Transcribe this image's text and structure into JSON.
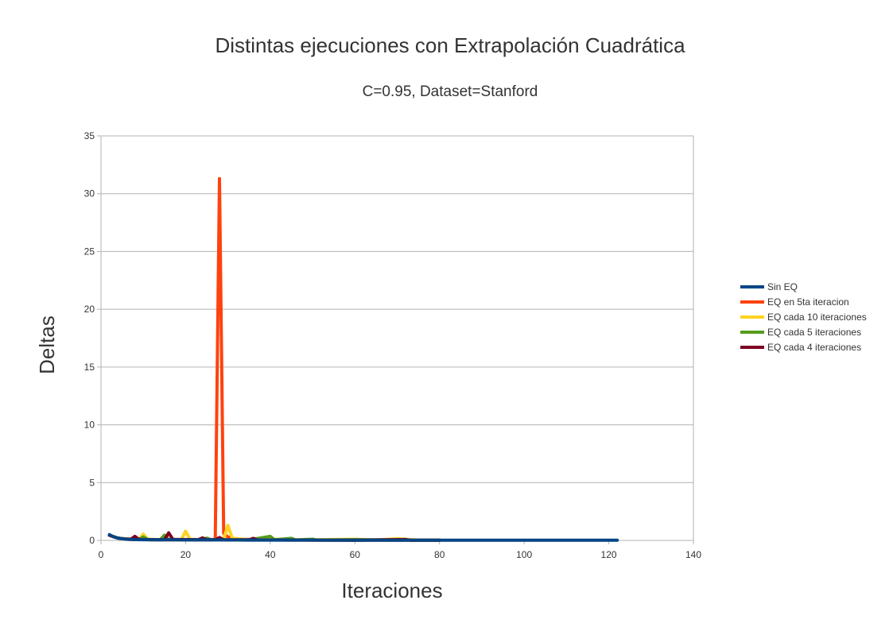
{
  "chart_data": {
    "type": "line",
    "title": "Distintas ejecuciones con Extrapolación Cuadrática",
    "subtitle": "C=0.95, Dataset=Stanford",
    "xlabel": "Iteraciones",
    "ylabel": "Deltas",
    "xlim": [
      0,
      140
    ],
    "ylim": [
      0,
      35
    ],
    "xticks": [
      0,
      20,
      40,
      60,
      80,
      100,
      120,
      140
    ],
    "yticks": [
      0,
      5,
      10,
      15,
      20,
      25,
      30,
      35
    ],
    "grid": true,
    "legend_position": "right",
    "series": [
      {
        "name": "Sin EQ",
        "color": "#004586",
        "points": [
          [
            2,
            0.5
          ],
          [
            3,
            0.3
          ],
          [
            4,
            0.2
          ],
          [
            5,
            0.15
          ],
          [
            6,
            0.1
          ],
          [
            7,
            0.08
          ],
          [
            8,
            0.07
          ],
          [
            10,
            0.06
          ],
          [
            12,
            0.05
          ],
          [
            15,
            0.05
          ],
          [
            20,
            0.04
          ],
          [
            25,
            0.04
          ],
          [
            30,
            0.04
          ],
          [
            35,
            0.03
          ],
          [
            40,
            0.03
          ],
          [
            50,
            0.03
          ],
          [
            60,
            0.02
          ],
          [
            70,
            0.02
          ],
          [
            80,
            0.02
          ],
          [
            90,
            0.02
          ],
          [
            100,
            0.02
          ],
          [
            110,
            0.02
          ],
          [
            122,
            0.02
          ]
        ]
      },
      {
        "name": "EQ en 5ta iteracion",
        "color": "#ff420e",
        "points": [
          [
            2,
            0.45
          ],
          [
            3,
            0.3
          ],
          [
            4,
            0.2
          ],
          [
            5,
            0.15
          ],
          [
            8,
            0.1
          ],
          [
            12,
            0.06
          ],
          [
            20,
            0.05
          ],
          [
            26,
            0.05
          ],
          [
            27,
            0.1
          ],
          [
            28,
            31.3
          ],
          [
            29,
            0.6
          ],
          [
            30,
            0.3
          ],
          [
            32,
            0.1
          ],
          [
            40,
            0.05
          ],
          [
            50,
            0.03
          ],
          [
            60,
            0.02
          ],
          [
            70,
            0.02
          ],
          [
            80,
            0.02
          ]
        ]
      },
      {
        "name": "EQ cada 10 iteraciones",
        "color": "#ffd320",
        "points": [
          [
            2,
            0.45
          ],
          [
            4,
            0.2
          ],
          [
            6,
            0.1
          ],
          [
            8,
            0.08
          ],
          [
            9,
            0.1
          ],
          [
            10,
            0.55
          ],
          [
            11,
            0.1
          ],
          [
            15,
            0.05
          ],
          [
            19,
            0.06
          ],
          [
            20,
            0.8
          ],
          [
            21,
            0.1
          ],
          [
            25,
            0.05
          ],
          [
            29,
            0.1
          ],
          [
            30,
            1.3
          ],
          [
            31,
            0.2
          ],
          [
            35,
            0.05
          ],
          [
            40,
            0.12
          ],
          [
            45,
            0.04
          ],
          [
            50,
            0.05
          ],
          [
            60,
            0.1
          ],
          [
            65,
            0.03
          ],
          [
            70,
            0.15
          ],
          [
            75,
            0.02
          ],
          [
            80,
            0.02
          ]
        ]
      },
      {
        "name": "EQ cada 5 iteraciones",
        "color": "#579d1c",
        "points": [
          [
            2,
            0.45
          ],
          [
            4,
            0.2
          ],
          [
            6,
            0.1
          ],
          [
            9,
            0.08
          ],
          [
            10,
            0.3
          ],
          [
            11,
            0.08
          ],
          [
            14,
            0.06
          ],
          [
            15,
            0.45
          ],
          [
            16,
            0.08
          ],
          [
            20,
            0.06
          ],
          [
            24,
            0.06
          ],
          [
            25,
            0.2
          ],
          [
            26,
            0.06
          ],
          [
            35,
            0.05
          ],
          [
            40,
            0.35
          ],
          [
            41,
            0.05
          ],
          [
            45,
            0.18
          ],
          [
            46,
            0.04
          ],
          [
            50,
            0.1
          ],
          [
            51,
            0.03
          ],
          [
            60,
            0.06
          ],
          [
            65,
            0.05
          ],
          [
            70,
            0.04
          ],
          [
            80,
            0.02
          ]
        ]
      },
      {
        "name": "EQ cada 4 iteraciones",
        "color": "#7e0021",
        "points": [
          [
            2,
            0.45
          ],
          [
            4,
            0.2
          ],
          [
            6,
            0.1
          ],
          [
            7,
            0.08
          ],
          [
            8,
            0.35
          ],
          [
            9,
            0.08
          ],
          [
            12,
            0.06
          ],
          [
            15,
            0.06
          ],
          [
            16,
            0.65
          ],
          [
            17,
            0.08
          ],
          [
            23,
            0.06
          ],
          [
            24,
            0.22
          ],
          [
            25,
            0.06
          ],
          [
            27,
            0.06
          ],
          [
            28,
            0.25
          ],
          [
            29,
            0.05
          ],
          [
            35,
            0.05
          ],
          [
            36,
            0.18
          ],
          [
            37,
            0.04
          ],
          [
            45,
            0.03
          ],
          [
            50,
            0.03
          ],
          [
            60,
            0.02
          ],
          [
            72,
            0.08
          ],
          [
            73,
            0.02
          ],
          [
            80,
            0.02
          ]
        ]
      }
    ]
  }
}
